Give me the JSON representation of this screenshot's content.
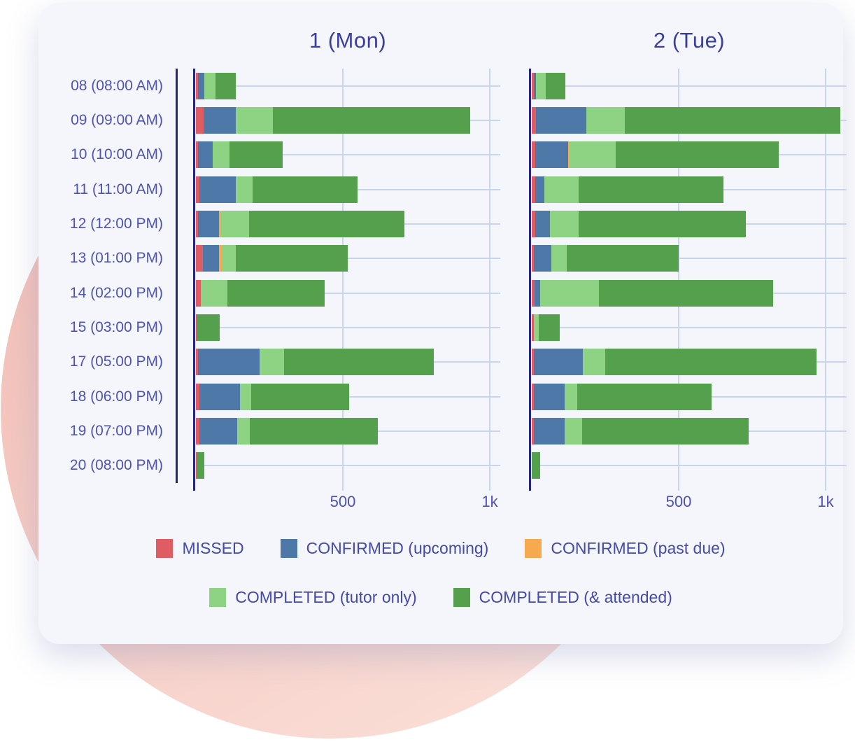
{
  "colors": {
    "missed": "#e05c63",
    "confirmed_upcoming": "#4d78a8",
    "confirmed_past_due": "#f7a94f",
    "completed_tutor_only": "#8ed283",
    "completed_attended": "#55a04c",
    "title_text": "#3a3f9e",
    "label_text": "#4d53b4",
    "axis_line": "#23257f",
    "gridline": "#c9d5ef",
    "card_background": "#f5f6fc",
    "circle_pink": "#f0bab3"
  },
  "axis": {
    "ticks": [
      {
        "value": 500,
        "label": "500"
      },
      {
        "value": 1000,
        "label": "1k"
      }
    ]
  },
  "legend_rows": [
    [
      0,
      1,
      2
    ],
    [
      3,
      4
    ]
  ],
  "chart_data": {
    "type": "bar",
    "orientation": "horizontal",
    "stacked": true,
    "grid": true,
    "xlim": [
      0,
      1070
    ],
    "categories": [
      "08 (08:00 AM)",
      "09 (09:00 AM)",
      "10 (10:00 AM)",
      "11 (11:00 AM)",
      "12 (12:00 PM)",
      "13 (01:00 PM)",
      "14 (02:00 PM)",
      "15 (03:00 PM)",
      "17 (05:00 PM)",
      "18 (06:00 PM)",
      "19 (07:00 PM)",
      "20 (08:00 PM)"
    ],
    "series_names": [
      "MISSED",
      "CONFIRMED (upcoming)",
      "CONFIRMED (past due)",
      "COMPLETED (tutor only)",
      "COMPLETED (& attended)"
    ],
    "series_color_keys": [
      "missed",
      "confirmed_upcoming",
      "confirmed_past_due",
      "completed_tutor_only",
      "completed_attended"
    ],
    "panels": [
      {
        "title": "1 (Mon)",
        "series": [
          {
            "name": "MISSED",
            "values": [
              8,
              26,
              6,
              11,
              6,
              23,
              17,
              5,
              6,
              13,
              13,
              5
            ]
          },
          {
            "name": "CONFIRMED (upcoming)",
            "values": [
              20,
              110,
              52,
              124,
              72,
              55,
              0,
              0,
              211,
              136,
              128,
              0
            ]
          },
          {
            "name": "CONFIRMED (past due)",
            "values": [
              0,
              0,
              0,
              4,
              7,
              12,
              0,
              0,
              0,
              0,
              0,
              0
            ]
          },
          {
            "name": "COMPLETED (tutor only)",
            "values": [
              39,
              126,
              57,
              54,
              97,
              45,
              91,
              0,
              83,
              39,
              43,
              0
            ]
          },
          {
            "name": "COMPLETED (& attended)",
            "values": [
              69,
              672,
              180,
              358,
              527,
              382,
              329,
              75,
              510,
              333,
              434,
              24
            ]
          }
        ]
      },
      {
        "title": "2 (Tue)",
        "series": [
          {
            "name": "MISSED",
            "values": [
              8,
              14,
              11,
              11,
              11,
              6,
              10,
              6,
              6,
              6,
              6,
              0
            ]
          },
          {
            "name": "CONFIRMED (upcoming)",
            "values": [
              6,
              171,
              112,
              33,
              51,
              61,
              19,
              0,
              167,
              105,
              107,
              0
            ]
          },
          {
            "name": "CONFIRMED (past due)",
            "values": [
              0,
              0,
              6,
              0,
              0,
              0,
              0,
              0,
              0,
              0,
              0,
              0
            ]
          },
          {
            "name": "COMPLETED (tutor only)",
            "values": [
              33,
              131,
              156,
              116,
              97,
              53,
              199,
              18,
              77,
              44,
              58,
              0
            ]
          },
          {
            "name": "COMPLETED (& attended)",
            "values": [
              68,
              734,
              555,
              492,
              570,
              380,
              594,
              72,
              718,
              457,
              568,
              28
            ]
          }
        ]
      }
    ]
  }
}
